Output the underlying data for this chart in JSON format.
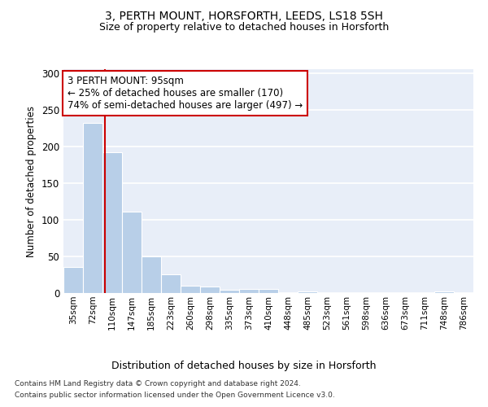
{
  "title1": "3, PERTH MOUNT, HORSFORTH, LEEDS, LS18 5SH",
  "title2": "Size of property relative to detached houses in Horsforth",
  "xlabel": "Distribution of detached houses by size in Horsforth",
  "ylabel": "Number of detached properties",
  "bin_labels": [
    "35sqm",
    "72sqm",
    "110sqm",
    "147sqm",
    "185sqm",
    "223sqm",
    "260sqm",
    "298sqm",
    "335sqm",
    "373sqm",
    "410sqm",
    "448sqm",
    "485sqm",
    "523sqm",
    "561sqm",
    "598sqm",
    "636sqm",
    "673sqm",
    "711sqm",
    "748sqm",
    "786sqm"
  ],
  "bar_values": [
    36,
    232,
    192,
    111,
    50,
    26,
    10,
    9,
    4,
    5,
    5,
    0,
    2,
    0,
    0,
    0,
    0,
    0,
    0,
    2,
    0
  ],
  "bar_color": "#b8cfe8",
  "annotation_text": "3 PERTH MOUNT: 95sqm\n← 25% of detached houses are smaller (170)\n74% of semi-detached houses are larger (497) →",
  "annotation_box_color": "#cc0000",
  "vline_color": "#cc0000",
  "footer1": "Contains HM Land Registry data © Crown copyright and database right 2024.",
  "footer2": "Contains public sector information licensed under the Open Government Licence v3.0.",
  "bg_color": "#e8eef8",
  "ylim": [
    0,
    305
  ],
  "yticks": [
    0,
    50,
    100,
    150,
    200,
    250,
    300
  ],
  "label_vals": [
    35,
    72,
    110,
    147,
    185,
    223,
    260,
    298,
    335,
    373,
    410,
    448,
    485,
    523,
    561,
    598,
    636,
    673,
    711,
    748,
    786
  ],
  "property_size": 95,
  "vline_bar_index": 1.605
}
